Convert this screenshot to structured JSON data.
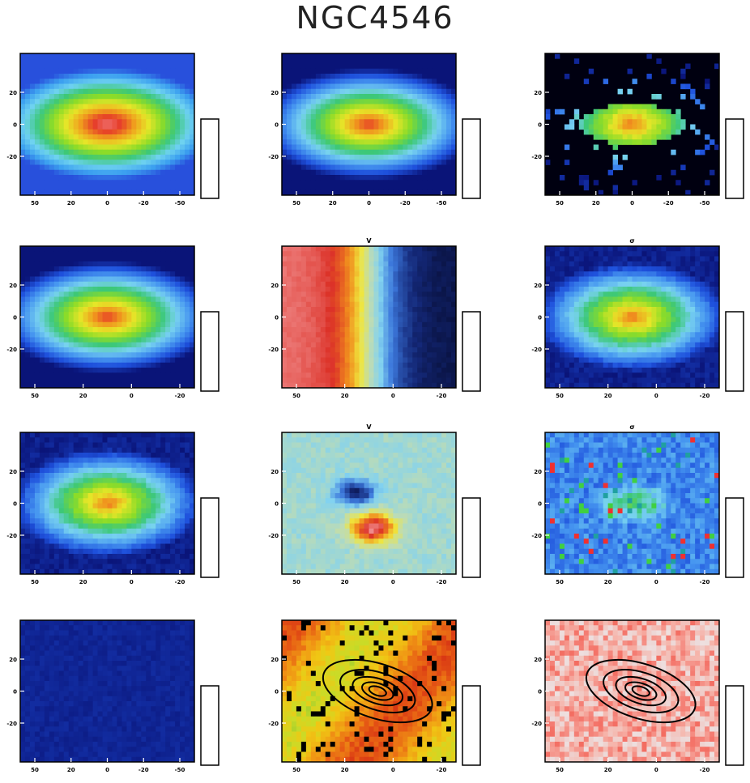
{
  "title": "NGC4546",
  "panels": [
    {
      "id": "p1",
      "title": "",
      "xticks": [
        "50",
        "20",
        "0",
        "-20",
        "-50"
      ],
      "yticks": [
        "20",
        "0",
        "-20"
      ],
      "colorbar_label": "",
      "map": "radial",
      "palette": "spectral",
      "bg": "#7fd6f6",
      "center_value": 1.0
    },
    {
      "id": "p2",
      "title": "",
      "xticks": [
        "50",
        "20",
        "0",
        "-20",
        "-50"
      ],
      "yticks": [
        "20",
        "0",
        "-20"
      ],
      "colorbar_label": "",
      "map": "radial",
      "palette": "blue",
      "bg": "#7fd6f6",
      "center_value": 0.9
    },
    {
      "id": "p3",
      "title": "",
      "xticks": [
        "50",
        "20",
        "0",
        "-20",
        "-50"
      ],
      "yticks": [
        "20",
        "0",
        "-20"
      ],
      "colorbar_label": "",
      "map": "radial_small",
      "palette": "blue",
      "bg": "#000010",
      "center_value": 0.8
    },
    {
      "id": "p4",
      "title": "",
      "xticks": [
        "50",
        "20",
        "0",
        "-20"
      ],
      "yticks": [
        "20",
        "0",
        "-20"
      ],
      "colorbar_label": "",
      "map": "radial",
      "palette": "blue",
      "bg": "#6ec4f4",
      "center_value": 1.0
    },
    {
      "id": "p5",
      "title": "V",
      "xticks": [
        "50",
        "20",
        "0",
        "-20"
      ],
      "yticks": [
        "20",
        "0",
        "-20"
      ],
      "colorbar_label": "",
      "map": "velocity",
      "palette": "velocity",
      "bg": "#ffffff",
      "center_value": 0
    },
    {
      "id": "p6",
      "title": "σ",
      "xticks": [
        "50",
        "20",
        "0",
        "-20"
      ],
      "yticks": [
        "20",
        "0",
        "-20"
      ],
      "colorbar_label": "",
      "map": "radial_small",
      "palette": "blue",
      "bg": "#a8dcf4",
      "center_value": 0.8
    },
    {
      "id": "p7",
      "title": "",
      "xticks": [
        "50",
        "20",
        "0",
        "-20"
      ],
      "yticks": [
        "20",
        "0",
        "-20"
      ],
      "colorbar_label": "",
      "map": "radial_small",
      "palette": "blue",
      "bg": "#00002a",
      "center_value": 0.9
    },
    {
      "id": "p8",
      "title": "V",
      "xticks": [
        "50",
        "20",
        "0",
        "-20"
      ],
      "yticks": [
        "20",
        "0",
        "-20"
      ],
      "colorbar_label": "",
      "map": "gasvel",
      "palette": "velocity",
      "bg": "#5a8fd8",
      "center_value": 0
    },
    {
      "id": "p9",
      "title": "σ",
      "xticks": [
        "50",
        "20",
        "0",
        "-20"
      ],
      "yticks": [
        "20",
        "0",
        "-20"
      ],
      "colorbar_label": "",
      "map": "noisy",
      "palette": "blue",
      "bg": "#3066d0",
      "center_value": 0.5
    },
    {
      "id": "p10",
      "title": "",
      "xticks": [
        "50",
        "20",
        "0",
        "-20",
        "-50"
      ],
      "yticks": [
        "20",
        "0",
        "-20"
      ],
      "colorbar_label": "",
      "map": "dark",
      "palette": "blue",
      "bg": "#00002a",
      "center_value": 0
    },
    {
      "id": "p11",
      "title": "",
      "xticks": [
        "50",
        "20",
        "0",
        "-20"
      ],
      "yticks": [
        "20",
        "0",
        "-20"
      ],
      "colorbar_label": "",
      "map": "orange",
      "palette": "orange",
      "bg": "#f07a20",
      "center_value": 0.5
    },
    {
      "id": "p12",
      "title": "",
      "xticks": [
        "50",
        "20",
        "0",
        "-20"
      ],
      "yticks": [
        "20",
        "0",
        "-20"
      ],
      "colorbar_label": "",
      "map": "pink",
      "palette": "pink",
      "bg": "#f4b0a8",
      "center_value": 0.5
    }
  ]
}
